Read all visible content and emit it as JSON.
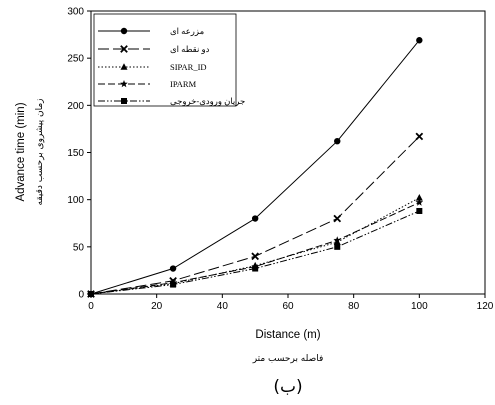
{
  "chart_data": {
    "type": "line",
    "xlabel": "Distance (m)",
    "xlabel_fa": "فاصله برحسب متر",
    "ylabel": "Advance time (min)",
    "ylabel_fa": "زمان پیشروی برحسب دقیقه",
    "panel_label": "(ب)",
    "xlim": [
      0,
      120
    ],
    "ylim": [
      0,
      300
    ],
    "xticks": [
      "0",
      "20",
      "40",
      "60",
      "80",
      "100",
      "120"
    ],
    "yticks": [
      "0",
      "50",
      "100",
      "150",
      "200",
      "250",
      "300"
    ],
    "legend_position": "top-left",
    "grid": false,
    "x": [
      0,
      25,
      50,
      75,
      100
    ],
    "series": [
      {
        "name": "مزرعه ای",
        "marker": "circle",
        "dash": "solid",
        "values": [
          0,
          27,
          80,
          162,
          269
        ]
      },
      {
        "name": "دو نقطه ای",
        "marker": "x",
        "dash": "long-dash",
        "values": [
          0,
          14,
          40,
          80,
          167
        ]
      },
      {
        "name": "SIPAR_ID",
        "marker": "triangle",
        "dash": "dotted",
        "values": [
          0,
          11,
          30,
          55,
          102
        ]
      },
      {
        "name": "IPARM",
        "marker": "star",
        "dash": "medium-dash",
        "values": [
          0,
          12,
          29,
          57,
          97
        ]
      },
      {
        "name": "جریان ورودی-خروجی",
        "marker": "square",
        "dash": "dash-dot-dot",
        "values": [
          0,
          10,
          27,
          50,
          88
        ]
      }
    ]
  }
}
